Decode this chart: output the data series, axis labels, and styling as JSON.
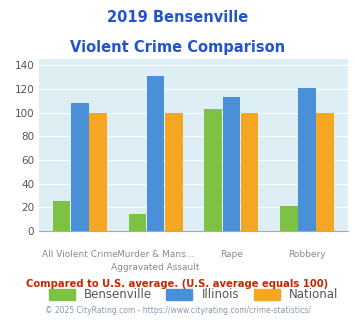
{
  "title_line1": "2019 Bensenville",
  "title_line2": "Violent Crime Comparison",
  "top_labels": [
    "",
    "Murder & Mans...",
    "",
    ""
  ],
  "bottom_labels": [
    "All Violent Crime",
    "Aggravated Assault",
    "Rape",
    "Robbery"
  ],
  "bensenville": [
    25,
    14,
    103,
    21
  ],
  "illinois": [
    108,
    131,
    113,
    121
  ],
  "national": [
    100,
    100,
    100,
    100
  ],
  "colors": {
    "bensenville": "#7dc242",
    "illinois": "#4a90d9",
    "national": "#f5a623"
  },
  "ylim": [
    0,
    145
  ],
  "yticks": [
    0,
    20,
    40,
    60,
    80,
    100,
    120,
    140
  ],
  "title_color": "#2255cc",
  "plot_bg": "#ddeef5",
  "footer_text": "Compared to U.S. average. (U.S. average equals 100)",
  "footer_color": "#cc2200",
  "credit_text": "© 2025 CityRating.com - https://www.cityrating.com/crime-statistics/",
  "credit_color": "#8899aa"
}
